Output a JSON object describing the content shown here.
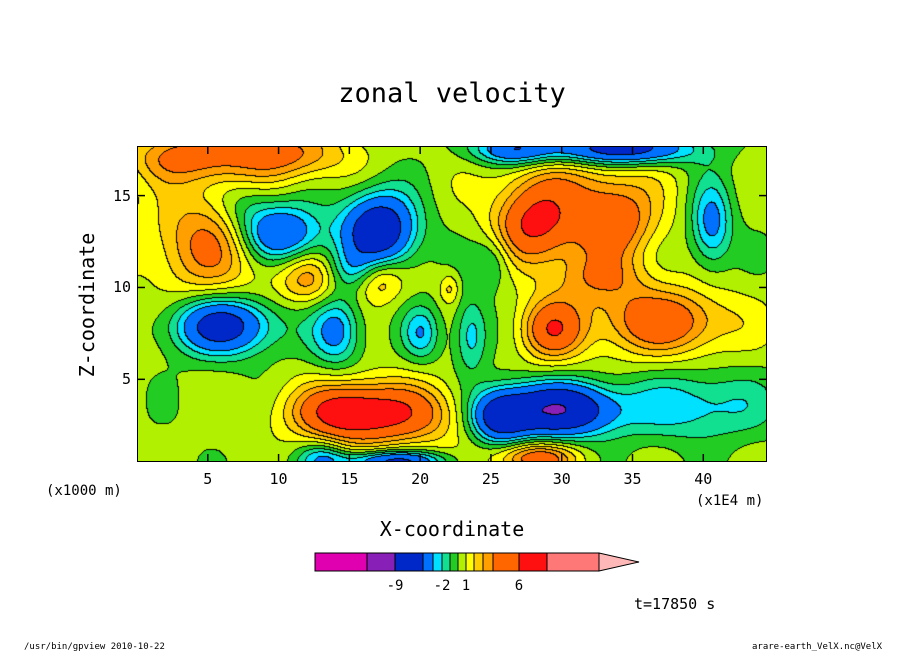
{
  "chart_data": {
    "type": "heatmap",
    "title": "zonal velocity",
    "xlabel": "X-coordinate",
    "ylabel": "Z-coordinate",
    "x_unit_left": "(x1000 m)",
    "x_unit_right": "(x1E4 m)",
    "x_ticks": [
      "5",
      "10",
      "15",
      "20",
      "25",
      "30",
      "35",
      "40"
    ],
    "y_ticks": [
      "5",
      "10",
      "15"
    ],
    "xlim": [
      0,
      44.5
    ],
    "ylim": [
      0.5,
      17.7
    ],
    "time_label": "t=17850 s",
    "colorbar": {
      "levels": [
        -15,
        -9,
        -5,
        -3,
        -2,
        -1,
        0,
        1,
        2,
        3,
        4,
        6,
        10,
        15
      ],
      "tick_labels": [
        "-9",
        "-2",
        "1",
        "6"
      ],
      "colors": [
        "#e000b0",
        "#8820b8",
        "#0028c8",
        "#0070ff",
        "#00e0ff",
        "#10e090",
        "#22cc22",
        "#b0f000",
        "#ffff00",
        "#ffcc00",
        "#ffa000",
        "#ff6600",
        "#ff1010",
        "#ff7878",
        "#ffb8b8"
      ]
    },
    "anomalies": [
      {
        "x": 17,
        "z": 13.2,
        "a": -8,
        "sx": 1.8,
        "sz": 1.4
      },
      {
        "x": 10,
        "z": 13.0,
        "a": -6,
        "sx": 2.0,
        "sz": 1.1
      },
      {
        "x": 6,
        "z": 8.0,
        "a": -7,
        "sx": 2.5,
        "sz": 1.1
      },
      {
        "x": 14,
        "z": 7.7,
        "a": -4,
        "sx": 1.2,
        "sz": 1.3
      },
      {
        "x": 20,
        "z": 7.6,
        "a": -3,
        "sx": 0.9,
        "sz": 1.0
      },
      {
        "x": 29.5,
        "z": 3.4,
        "a": -9,
        "sx": 3.0,
        "sz": 1.0
      },
      {
        "x": 25.5,
        "z": 3.0,
        "a": -6,
        "sx": 1.4,
        "sz": 1.0
      },
      {
        "x": 39.5,
        "z": 3.6,
        "a": -3,
        "sx": 3.5,
        "sz": 1.3
      },
      {
        "x": 40.5,
        "z": 13.5,
        "a": -4,
        "sx": 1.0,
        "sz": 1.6
      },
      {
        "x": 34,
        "z": 17.6,
        "a": -7,
        "sx": 3.5,
        "sz": 0.6
      },
      {
        "x": 26.5,
        "z": 17.6,
        "a": -5,
        "sx": 2.0,
        "sz": 0.6
      },
      {
        "x": 18,
        "z": 0.6,
        "a": -6,
        "sx": 2.5,
        "sz": 0.4
      },
      {
        "x": 25,
        "z": 11.5,
        "a": -2,
        "sx": 1.0,
        "sz": 1.0
      },
      {
        "x": 15,
        "z": 11.0,
        "a": -2,
        "sx": 1.2,
        "sz": 0.8
      },
      {
        "x": 7.5,
        "z": 14.5,
        "a": -2,
        "sx": 1.5,
        "sz": 1.0
      },
      {
        "x": 28,
        "z": 13.5,
        "a": 6,
        "sx": 2.0,
        "sz": 1.5
      },
      {
        "x": 33.5,
        "z": 13.6,
        "a": 5,
        "sx": 2.2,
        "sz": 1.4
      },
      {
        "x": 37,
        "z": 8.2,
        "a": 5,
        "sx": 3.5,
        "sz": 1.3
      },
      {
        "x": 29.2,
        "z": 7.8,
        "a": 5,
        "sx": 1.6,
        "sz": 1.2
      },
      {
        "x": 17,
        "z": 3.2,
        "a": 6,
        "sx": 4.0,
        "sz": 1.2
      },
      {
        "x": 14.5,
        "z": 3.3,
        "a": 3,
        "sx": 2.0,
        "sz": 1.0
      },
      {
        "x": 5,
        "z": 12.5,
        "a": 4,
        "sx": 3.0,
        "sz": 2.2
      },
      {
        "x": 3.5,
        "z": 17.2,
        "a": 4,
        "sx": 3.0,
        "sz": 1.0
      },
      {
        "x": 10.5,
        "z": 17.3,
        "a": 4,
        "sx": 3.0,
        "sz": 1.0
      },
      {
        "x": 12,
        "z": 10.5,
        "a": 3,
        "sx": 1.5,
        "sz": 1.0
      },
      {
        "x": 17,
        "z": 10.5,
        "a": 3,
        "sx": 1.2,
        "sz": 0.9
      },
      {
        "x": 22,
        "z": 10.0,
        "a": 2,
        "sx": 0.5,
        "sz": 0.6
      },
      {
        "x": 28,
        "z": 0.8,
        "a": 5,
        "sx": 2.0,
        "sz": 0.6
      },
      {
        "x": 32.5,
        "z": 10.6,
        "a": 3,
        "sx": 2.5,
        "sz": 1.0
      },
      {
        "x": 23.5,
        "z": 7.5,
        "a": -3,
        "sx": 0.8,
        "sz": 1.4
      },
      {
        "x": 13,
        "z": 0.8,
        "a": -3,
        "sx": 1.2,
        "sz": 0.6
      },
      {
        "x": 31,
        "z": 15.8,
        "a": 2,
        "sx": 4.0,
        "sz": 1.2
      }
    ]
  },
  "footer": {
    "left": "/usr/bin/gpview  2010-10-22",
    "right": "arare-earth_VelX.nc@VelX"
  }
}
